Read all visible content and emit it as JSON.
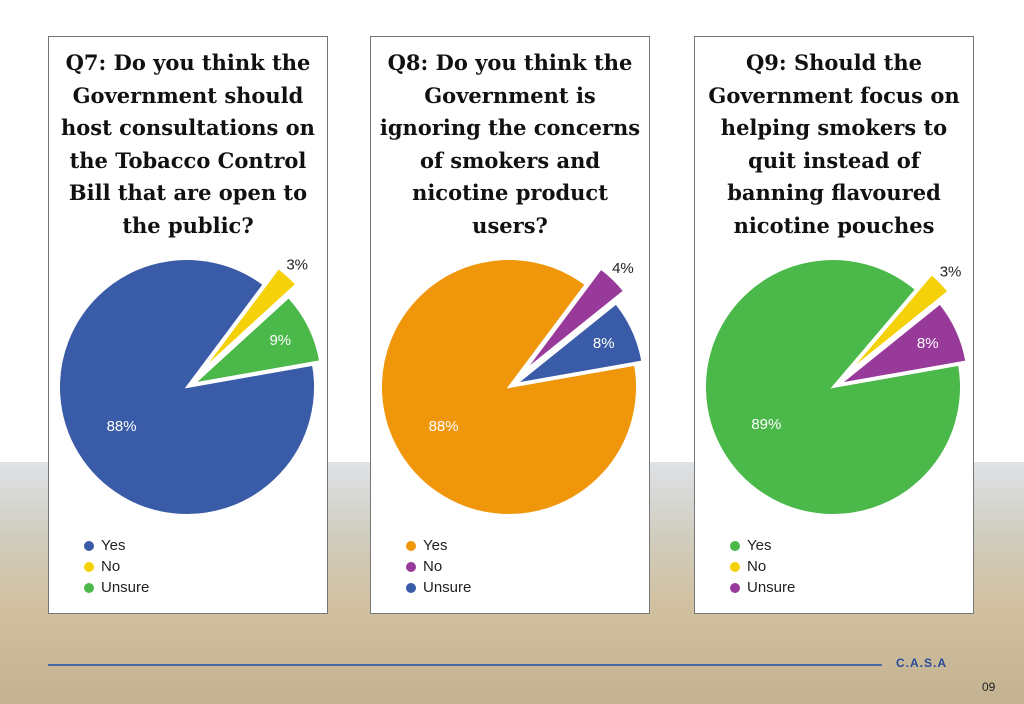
{
  "chart_data": [
    {
      "type": "pie",
      "title": "Q7: Do you think the Government should host consultations on the Tobacco Control Bill that are open to the public?",
      "categories": [
        "Yes",
        "No",
        "Unsure"
      ],
      "values": [
        88,
        3,
        9
      ],
      "value_labels": [
        "88%",
        "3%",
        "9%"
      ],
      "colors": [
        "#3a5ba8",
        "#f5d10a",
        "#4bb84a"
      ]
    },
    {
      "type": "pie",
      "title": "Q8: Do you think the Government is ignoring the concerns of smokers and nicotine product users?",
      "categories": [
        "Yes",
        "No",
        "Unsure"
      ],
      "values": [
        88,
        4,
        8
      ],
      "value_labels": [
        "88%",
        "4%",
        "8%"
      ],
      "colors": [
        "#f0960a",
        "#983a9a",
        "#3a5ba8"
      ]
    },
    {
      "type": "pie",
      "title": "Q9: Should the Government focus on helping smokers to quit instead of banning flavoured nicotine pouches",
      "categories": [
        "Yes",
        "No",
        "Unsure"
      ],
      "values": [
        89,
        3,
        8
      ],
      "value_labels": [
        "89%",
        "3%",
        "8%"
      ],
      "colors": [
        "#4bb84a",
        "#f5d10a",
        "#983a9a"
      ]
    }
  ],
  "footer": {
    "logo": "C.A.S.A",
    "page": "09"
  }
}
